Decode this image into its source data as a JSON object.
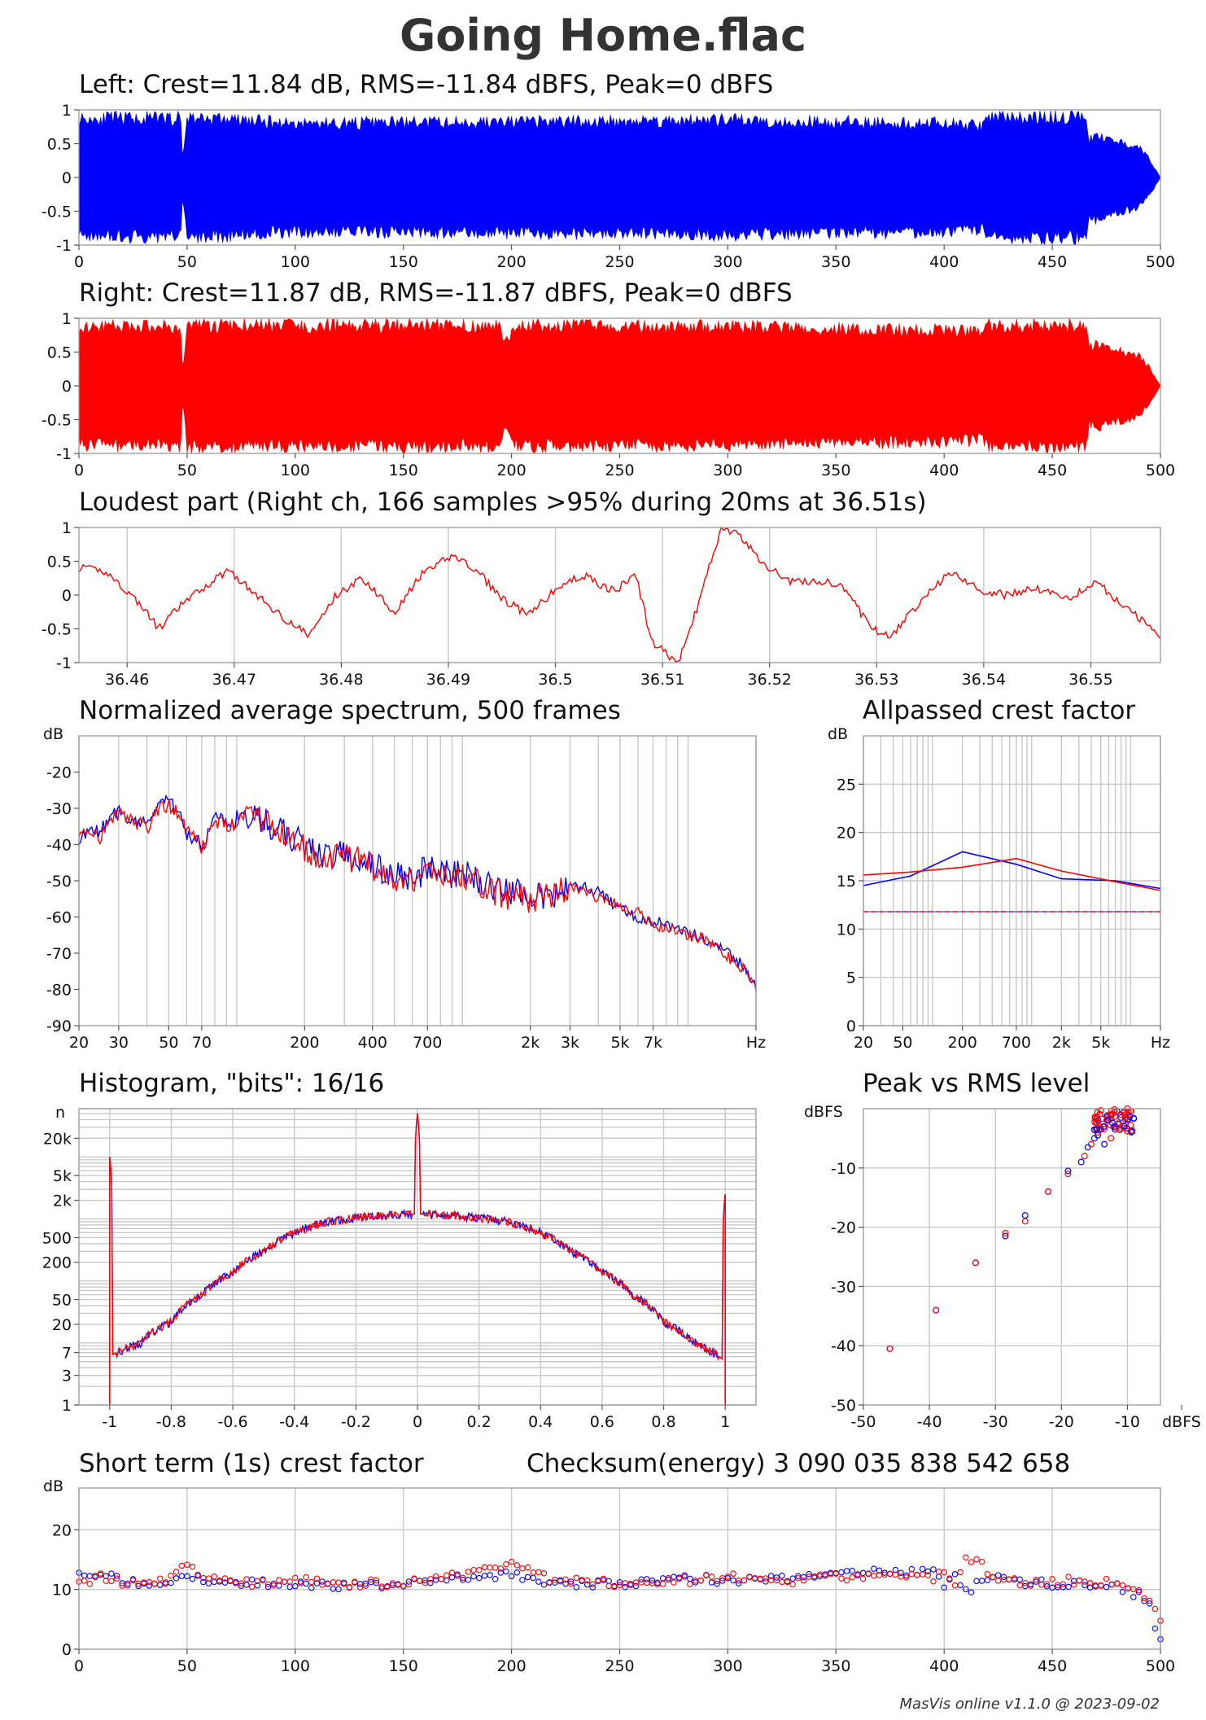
{
  "title": "Going Home.flac",
  "footer": "MasVis online v1.1.0 @ 2023-09-02",
  "colors": {
    "left": "#0000ff",
    "right": "#ff0000",
    "grid": "#c8c8c8",
    "frame": "#999999"
  },
  "chart_data": [
    {
      "id": "left",
      "type": "area",
      "title": "Left: Crest=11.84 dB, RMS=-11.84 dBFS, Peak=0 dBFS",
      "series_color": "#0000ff",
      "xlim": [
        0,
        500
      ],
      "ylim": [
        -1,
        1
      ],
      "xticks": [
        0,
        50,
        100,
        150,
        200,
        250,
        300,
        350,
        400,
        450,
        500
      ],
      "yticks": [
        1,
        0.5,
        0,
        -0.5,
        -1
      ],
      "ytick_labels": [
        "1",
        "0.5",
        "0",
        "-0.5",
        "-1"
      ],
      "envelope": {
        "t": [
          0,
          47,
          48,
          50,
          100,
          200,
          300,
          350,
          400,
          418,
          420,
          466,
          467,
          470,
          480,
          490,
          495,
          500
        ],
        "peak": [
          0.98,
          0.98,
          0.3,
          1.0,
          0.9,
          0.92,
          0.95,
          0.92,
          0.9,
          0.85,
          1.0,
          1.0,
          0.6,
          0.7,
          0.6,
          0.5,
          0.3,
          0.0
        ]
      }
    },
    {
      "id": "right",
      "type": "area",
      "title": "Right: Crest=11.87 dB, RMS=-11.87 dBFS, Peak=0 dBFS",
      "series_color": "#ff0000",
      "xlim": [
        0,
        500
      ],
      "ylim": [
        -1,
        1
      ],
      "xticks": [
        0,
        50,
        100,
        150,
        200,
        250,
        300,
        350,
        400,
        450,
        500
      ],
      "yticks": [
        1,
        0.5,
        0,
        -0.5,
        -1
      ],
      "ytick_labels": [
        "1",
        "0.5",
        "0",
        "-0.5",
        "-1"
      ],
      "envelope": {
        "t": [
          0,
          47,
          48,
          50,
          195,
          197,
          200,
          203,
          300,
          350,
          400,
          418,
          420,
          466,
          467,
          470,
          480,
          490,
          495,
          500
        ],
        "peak": [
          0.98,
          0.98,
          0.2,
          1.0,
          1.0,
          0.7,
          0.85,
          1.0,
          0.98,
          0.95,
          0.92,
          0.9,
          1.0,
          1.0,
          0.6,
          0.7,
          0.6,
          0.5,
          0.3,
          0.0
        ]
      }
    },
    {
      "id": "loudest",
      "type": "line",
      "title": "Loudest part (Right ch, 166 samples >95% during 20ms at 36.51s)",
      "series_color": "#ff0000",
      "xlim": [
        36.4555,
        36.5565
      ],
      "ylim": [
        -1,
        1
      ],
      "xticks": [
        36.46,
        36.47,
        36.48,
        36.49,
        36.5,
        36.51,
        36.52,
        36.53,
        36.54,
        36.55
      ],
      "xtick_labels": [
        "36.46",
        "36.47",
        "36.48",
        "36.49",
        "36.5",
        "36.51",
        "36.52",
        "36.53",
        "36.54",
        "36.55"
      ],
      "yticks": [
        1,
        0.5,
        0,
        -0.5,
        -1
      ],
      "ytick_labels": [
        "1",
        "0.5",
        "0",
        "-0.5",
        "-1"
      ],
      "x": [
        36.4555,
        36.458,
        36.461,
        36.463,
        36.465,
        36.4675,
        36.4695,
        36.472,
        36.475,
        36.477,
        36.4795,
        36.482,
        36.485,
        36.4875,
        36.4905,
        36.493,
        36.495,
        36.4975,
        36.5,
        36.5025,
        36.5055,
        36.5075,
        36.509,
        36.5115,
        36.513,
        36.5155,
        36.517,
        36.5195,
        36.522,
        36.525,
        36.527,
        36.5295,
        36.5315,
        36.5345,
        36.537,
        36.5395,
        36.542,
        36.545,
        36.548,
        36.5505,
        36.553,
        36.5565
      ],
      "y": [
        0.4,
        0.35,
        -0.1,
        -0.5,
        -0.15,
        0.15,
        0.38,
        0.0,
        -0.38,
        -0.6,
        0.0,
        0.25,
        -0.25,
        0.3,
        0.6,
        0.3,
        -0.05,
        -0.3,
        0.08,
        0.3,
        0.05,
        0.3,
        -0.7,
        -1.0,
        -0.3,
        1.0,
        0.9,
        0.45,
        0.2,
        0.2,
        0.1,
        -0.5,
        -0.6,
        0.0,
        0.35,
        0.08,
        0.0,
        0.1,
        -0.05,
        0.2,
        -0.15,
        -0.6
      ]
    },
    {
      "id": "spectrum",
      "type": "line",
      "title": "Normalized average spectrum, 500 frames",
      "xscale": "log",
      "xlim": [
        20,
        20000
      ],
      "ylim": [
        -90,
        -10
      ],
      "xtick_labels": [
        "20",
        "30",
        "50",
        "70",
        "200",
        "400",
        "700",
        "2k",
        "3k",
        "5k",
        "7k",
        "Hz"
      ],
      "xtick_values": [
        20,
        30,
        50,
        70,
        200,
        400,
        700,
        2000,
        3000,
        5000,
        7000
      ],
      "ytick_values": [
        -20,
        -30,
        -40,
        -50,
        -60,
        -70,
        -80,
        -90
      ],
      "ylabel": "dB",
      "x": [
        20,
        25,
        30,
        35,
        40,
        45,
        50,
        55,
        60,
        70,
        80,
        100,
        120,
        150,
        200,
        250,
        300,
        400,
        500,
        600,
        700,
        800,
        1000,
        1200,
        1500,
        2000,
        2500,
        3000,
        3500,
        4000,
        5000,
        6000,
        7000,
        8000,
        10000,
        12000,
        15000,
        18000,
        20000
      ],
      "series": [
        {
          "color": "#0000ff",
          "values": [
            -38,
            -36,
            -30,
            -34,
            -33,
            -29,
            -28,
            -31,
            -37,
            -40,
            -33,
            -34,
            -32,
            -36,
            -40,
            -44,
            -42,
            -46,
            -48,
            -50,
            -46,
            -48,
            -48,
            -50,
            -53,
            -54,
            -55,
            -52,
            -52,
            -53,
            -58,
            -60,
            -61,
            -62,
            -64,
            -67,
            -70,
            -74,
            -79
          ]
        },
        {
          "color": "#ff0000",
          "values": [
            -36,
            -38,
            -31,
            -33,
            -36,
            -30,
            -29,
            -31,
            -36,
            -41,
            -34,
            -35,
            -32,
            -35,
            -41,
            -45,
            -43,
            -46,
            -49,
            -50,
            -47,
            -48,
            -49,
            -51,
            -54,
            -55,
            -54,
            -52,
            -53,
            -55,
            -57,
            -59,
            -62,
            -63,
            -65,
            -66,
            -71,
            -75,
            -80
          ]
        }
      ]
    },
    {
      "id": "allpass",
      "type": "line",
      "title": "Allpassed crest factor",
      "xscale": "log",
      "xlim": [
        20,
        20000
      ],
      "ylim": [
        0,
        30
      ],
      "xtick_labels": [
        "20",
        "50",
        "200",
        "700",
        "2k",
        "5k",
        "Hz"
      ],
      "xtick_values": [
        20,
        50,
        200,
        700,
        2000,
        5000
      ],
      "ytick_values": [
        0,
        5,
        10,
        15,
        20,
        25
      ],
      "ylabel": "dB",
      "x": [
        20,
        60,
        200,
        700,
        2000,
        7000,
        20000
      ],
      "series": [
        {
          "color": "#0000ff",
          "values": [
            14.5,
            15.5,
            18.0,
            16.7,
            15.2,
            15.0,
            14.2
          ]
        },
        {
          "color": "#ff0000",
          "values": [
            15.6,
            15.9,
            16.4,
            17.3,
            16.0,
            14.9,
            14.0
          ]
        }
      ],
      "reference": {
        "value": 11.8,
        "style": "dashed"
      }
    },
    {
      "id": "histogram",
      "type": "line",
      "title": "Histogram, \"bits\": 16/16",
      "xlim": [
        -1.1,
        1.1
      ],
      "yscale": "log",
      "xticks": [
        -1,
        -0.8,
        -0.6,
        -0.4,
        -0.2,
        0,
        0.2,
        0.4,
        0.6,
        0.8,
        1
      ],
      "xtick_labels": [
        "-1",
        "-0.8",
        "-0.6",
        "-0.4",
        "-0.2",
        "0",
        "0.2",
        "0.4",
        "0.6",
        "0.8",
        "1"
      ],
      "ytick_labels": [
        "20k",
        "5k",
        "2k",
        "500",
        "200",
        "50",
        "20",
        "7",
        "3",
        "1"
      ],
      "ytick_values": [
        20000,
        5000,
        2000,
        500,
        200,
        50,
        20,
        7,
        3,
        1
      ],
      "ylabel": "n",
      "x": [
        -1,
        -0.99,
        -0.9,
        -0.8,
        -0.7,
        -0.6,
        -0.5,
        -0.4,
        -0.3,
        -0.2,
        -0.1,
        -0.01,
        0,
        0.01,
        0.1,
        0.2,
        0.3,
        0.4,
        0.5,
        0.6,
        0.7,
        0.8,
        0.9,
        0.99,
        1
      ],
      "values": [
        10000,
        6.5,
        10,
        22,
        60,
        140,
        300,
        600,
        900,
        1050,
        1150,
        1200,
        50000,
        1200,
        1150,
        1050,
        900,
        600,
        300,
        140,
        60,
        22,
        10,
        5.5,
        2500
      ]
    },
    {
      "id": "peak_rms",
      "type": "scatter",
      "title": "Peak vs RMS level",
      "xlim": [
        -50,
        -5
      ],
      "ylim": [
        -50,
        0
      ],
      "xticks": [
        -50,
        -40,
        -30,
        -20,
        -10
      ],
      "xtick_labels": [
        "-50",
        "-40",
        "-30",
        "-20",
        "-10",
        "dBFS"
      ],
      "yticks": [
        -10,
        -20,
        -30,
        -40,
        -50
      ],
      "ytick_labels": [
        "-10",
        "-20",
        "-30",
        "-40",
        "-50"
      ],
      "ylabel": "dBFS",
      "series": [
        {
          "color": "#0000ff",
          "x": [
            -46,
            -39,
            -33,
            -28.5,
            -25.5,
            -22,
            -19,
            -17,
            -16,
            -15,
            -14,
            -13,
            -12.5,
            -12,
            -11,
            -10.5,
            -14.5,
            -13.5
          ],
          "y": [
            -40.5,
            -34,
            -26,
            -21.5,
            -18,
            -14,
            -10.5,
            -9,
            -6.5,
            -5,
            -3.5,
            -2,
            -1,
            -3,
            -1.5,
            -0.5,
            -4.5,
            -6
          ]
        },
        {
          "color": "#ff0000",
          "x": [
            -46,
            -39,
            -33,
            -28.5,
            -25.5,
            -22,
            -19,
            -16.5,
            -15.5,
            -14.5,
            -13.5,
            -13,
            -12,
            -11.5,
            -11,
            -10,
            -9.5,
            -15,
            -12.5
          ],
          "y": [
            -40.5,
            -34,
            -26,
            -21,
            -19,
            -14,
            -11,
            -8,
            -6,
            -4,
            -3,
            -1.5,
            -0.5,
            -2.5,
            -1,
            0,
            -0.5,
            -3.5,
            -5
          ]
        }
      ]
    },
    {
      "id": "short_term",
      "type": "scatter",
      "title": "Short term (1s) crest factor",
      "annotation": "Checksum(energy) 3 090 035 838 542 658",
      "xlim": [
        0,
        500
      ],
      "ylim": [
        0,
        30
      ],
      "xticks": [
        0,
        50,
        100,
        150,
        200,
        250,
        300,
        350,
        400,
        450,
        500
      ],
      "yticks": [
        0,
        10,
        20
      ],
      "ylabel": "dB",
      "series": [
        {
          "color": "#0000ff",
          "x": [
            0,
            5,
            10,
            20,
            30,
            40,
            50,
            60,
            80,
            100,
            120,
            150,
            180,
            200,
            220,
            250,
            280,
            300,
            330,
            350,
            380,
            395,
            400,
            405,
            410,
            420,
            440,
            460,
            480,
            490,
            495,
            500
          ],
          "y": [
            13.5,
            12,
            12.5,
            11.5,
            11,
            11,
            12,
            11.5,
            11,
            11,
            10.5,
            11,
            12,
            12.5,
            11,
            11,
            12,
            11.5,
            12,
            12.5,
            13,
            13,
            10,
            12,
            9.5,
            12,
            11,
            11,
            10.5,
            9,
            7,
            1
          ]
        },
        {
          "color": "#ff0000",
          "x": [
            0,
            5,
            10,
            20,
            30,
            40,
            50,
            60,
            80,
            100,
            120,
            150,
            180,
            200,
            220,
            250,
            280,
            300,
            330,
            350,
            380,
            395,
            400,
            405,
            410,
            415,
            420,
            440,
            460,
            480,
            490,
            495,
            500
          ],
          "y": [
            12,
            11.5,
            12,
            11,
            11.5,
            11.5,
            14,
            12,
            11,
            11.5,
            11,
            11,
            12.5,
            14,
            11.5,
            11,
            11.5,
            12,
            11.5,
            12,
            12.5,
            12,
            13,
            10,
            15,
            15.5,
            12.5,
            11,
            11.5,
            11,
            10,
            8,
            5
          ]
        }
      ]
    }
  ]
}
